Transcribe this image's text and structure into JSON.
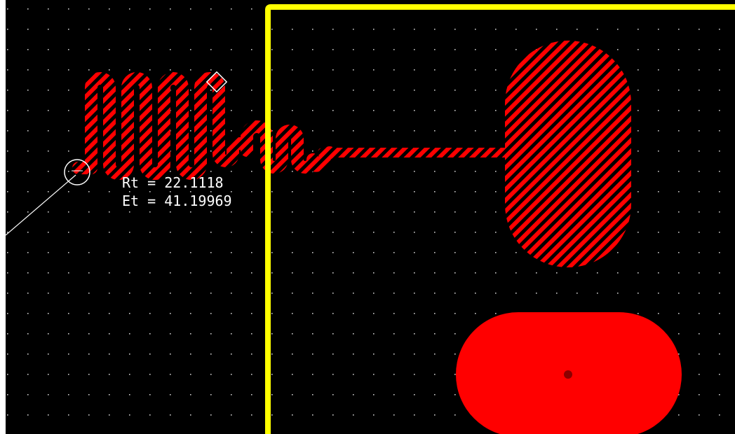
{
  "readout": {
    "rt_label": "Rt",
    "rt_value": "22.1118",
    "et_label": "Et",
    "et_value": "41.19969",
    "separator": "="
  },
  "colors": {
    "background": "#000000",
    "copper": "#ff0000",
    "hatch": "#000000",
    "board_outline": "#ffff00",
    "grid_dot": "#c8c8c8",
    "cursor": "#ffffff",
    "via_hole": "#8b0000"
  },
  "icons": {
    "start_marker": "circle-cursor-icon",
    "end_marker": "diamond-marker-icon"
  }
}
